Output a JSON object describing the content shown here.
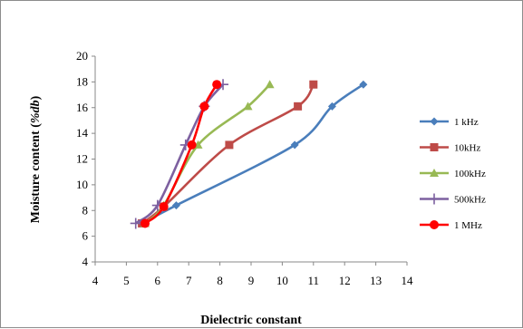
{
  "chart_data": {
    "type": "line",
    "xlabel": "Dielectric constant",
    "ylabel_prefix": "Moisture content (",
    "ylabel_italic": "%db",
    "ylabel_suffix": ")",
    "xlim": [
      4,
      14
    ],
    "ylim": [
      4,
      20
    ],
    "xticks": [
      4,
      5,
      6,
      7,
      8,
      9,
      10,
      11,
      12,
      13,
      14
    ],
    "yticks": [
      4,
      6,
      8,
      10,
      12,
      14,
      16,
      18,
      20
    ],
    "grid": false,
    "legend_position": "right",
    "series": [
      {
        "name": "1 kHz",
        "color": "#4a7ebb",
        "marker": "diamond",
        "x": [
          5.5,
          6.6,
          10.4,
          11.6,
          12.6
        ],
        "y": [
          7.0,
          8.4,
          13.1,
          16.1,
          17.8
        ]
      },
      {
        "name": "10kHz",
        "color": "#be4b48",
        "marker": "square",
        "x": [
          5.5,
          6.2,
          8.3,
          10.5,
          11.0
        ],
        "y": [
          7.0,
          8.3,
          13.1,
          16.1,
          17.8
        ]
      },
      {
        "name": "100kHz",
        "color": "#98b954",
        "marker": "triangle",
        "x": [
          5.6,
          6.2,
          7.3,
          8.9,
          9.6
        ],
        "y": [
          7.0,
          8.4,
          13.1,
          16.1,
          17.8
        ]
      },
      {
        "name": "500kHz",
        "color": "#7d60a0",
        "marker": "plus",
        "x": [
          5.3,
          6.0,
          6.9,
          7.5,
          8.1
        ],
        "y": [
          7.0,
          8.4,
          13.1,
          16.1,
          17.8
        ]
      },
      {
        "name": "1 MHz",
        "color": "#ff0000",
        "marker": "circle",
        "x": [
          5.6,
          6.2,
          7.1,
          7.5,
          7.9
        ],
        "y": [
          7.0,
          8.3,
          13.1,
          16.1,
          17.8
        ]
      }
    ]
  }
}
